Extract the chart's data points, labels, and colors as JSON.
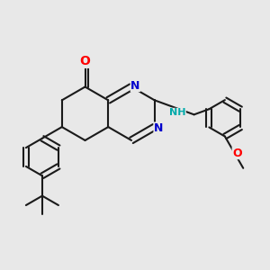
{
  "bg": "#e8e8e8",
  "bond_color": "#1a1a1a",
  "bw": 1.5,
  "colors": {
    "O": "#ff0000",
    "N": "#0000cc",
    "NH": "#00aaaa",
    "C": "#1a1a1a"
  },
  "fig_size": [
    3.0,
    3.0
  ],
  "dpi": 100
}
